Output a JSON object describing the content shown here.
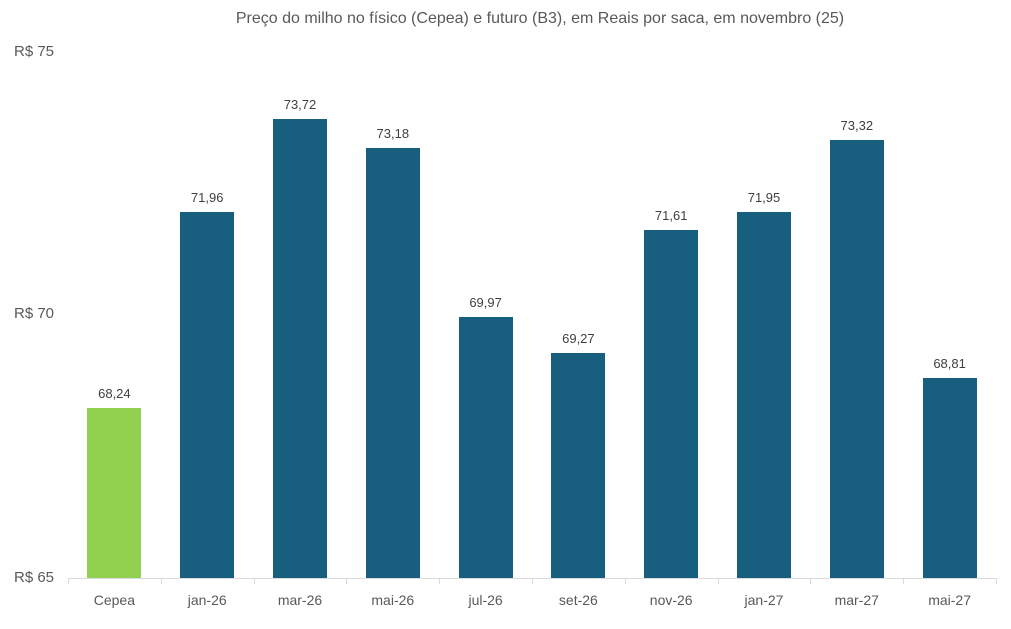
{
  "chart_data": {
    "type": "bar",
    "title": "Preço do milho no físico (Cepea) e futuro (B3), em Reais por saca, em novembro (25)",
    "xlabel": "",
    "ylabel": "",
    "ylim": [
      65,
      75
    ],
    "yticks": [
      "R$ 65",
      "R$ 70",
      "R$ 75"
    ],
    "grid": false,
    "legend": null,
    "categories": [
      "Cepea",
      "jan-26",
      "mar-26",
      "mai-26",
      "jul-26",
      "set-26",
      "nov-26",
      "jan-27",
      "mar-27",
      "mai-27"
    ],
    "values": [
      68.24,
      71.96,
      73.72,
      73.18,
      69.97,
      69.27,
      71.61,
      71.95,
      73.32,
      68.81
    ],
    "value_labels": [
      "68,24",
      "71,96",
      "73,72",
      "73,18",
      "69,97",
      "69,27",
      "71,61",
      "71,95",
      "73,32",
      "68,81"
    ],
    "colors": [
      "#92d050",
      "#175e7f",
      "#175e7f",
      "#175e7f",
      "#175e7f",
      "#175e7f",
      "#175e7f",
      "#175e7f",
      "#175e7f",
      "#175e7f"
    ]
  },
  "colors": {
    "spot": "#92d050",
    "futures": "#175e7f",
    "axis": "#d9d9d9",
    "text": "#595959"
  }
}
